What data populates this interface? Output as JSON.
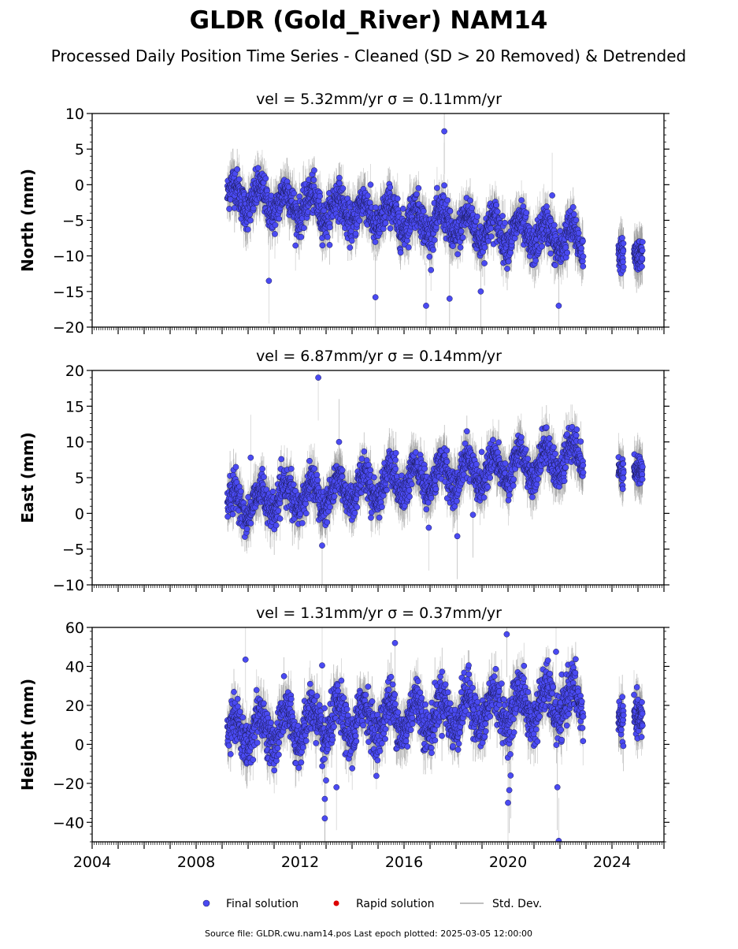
{
  "header": {
    "title": "GLDR (Gold_River) NAM14",
    "subtitle": "Processed Daily Position Time Series - Cleaned (SD > 20 Removed) & Detrended"
  },
  "colors": {
    "final": "#4a4af2",
    "rapid": "#dd0000",
    "stddev": "#c0c0c0"
  },
  "legend": {
    "placement": "bottom-center",
    "final_label": "Final solution",
    "rapid_label": "Rapid solution",
    "stddev_label": "Std. Dev."
  },
  "footer": {
    "text": "Source file: GLDR.cwu.nam14.pos  Last epoch plotted: 2025-03-05 12:00:00"
  },
  "chart_data": [
    {
      "type": "scatter",
      "title": "vel = 5.32mm/yr   σ = 0.11mm/yr",
      "ylabel": "North (mm)",
      "xlim": [
        2004,
        2026
      ],
      "ylim": [
        -20,
        10
      ],
      "yticks": [
        "10",
        "5",
        "0",
        "−5",
        "−10",
        "−15",
        "−20"
      ],
      "xticks": [
        "2004",
        "2008",
        "2012",
        "2016",
        "2020",
        "2024"
      ],
      "grid": false,
      "data_span": [
        2009.2,
        2022.9
      ],
      "extra_spans": [
        [
          2024.25,
          2024.45
        ],
        [
          2024.85,
          2025.18
        ]
      ],
      "trend": {
        "start": -1.5,
        "end": -8.0,
        "amplitude": 1.8,
        "noise": 1.3
      },
      "outliers": [
        {
          "x": 2017.55,
          "y": 7.5
        },
        {
          "x": 2017.55,
          "y": -0.1
        },
        {
          "x": 2010.8,
          "y": -13.5
        },
        {
          "x": 2014.9,
          "y": -15.8
        },
        {
          "x": 2016.85,
          "y": -17.0
        },
        {
          "x": 2017.75,
          "y": -16.0
        },
        {
          "x": 2021.95,
          "y": -17.0
        },
        {
          "x": 2018.95,
          "y": -15.0
        },
        {
          "x": 2021.7,
          "y": -1.5
        }
      ]
    },
    {
      "type": "scatter",
      "title": "vel = 6.87mm/yr   σ = 0.14mm/yr",
      "ylabel": "East (mm)",
      "xlim": [
        2004,
        2026
      ],
      "ylim": [
        -10,
        20
      ],
      "yticks": [
        "20",
        "15",
        "10",
        "5",
        "0",
        "−5",
        "−10"
      ],
      "xticks": [
        "2004",
        "2008",
        "2012",
        "2016",
        "2020",
        "2024"
      ],
      "grid": false,
      "data_span": [
        2009.2,
        2022.9
      ],
      "extra_spans": [
        [
          2024.25,
          2024.45
        ],
        [
          2024.85,
          2025.18
        ]
      ],
      "trend": {
        "start": 1.0,
        "end": 8.0,
        "amplitude": 2.0,
        "noise": 1.2
      },
      "outliers": [
        {
          "x": 2012.7,
          "y": 19.0
        },
        {
          "x": 2016.95,
          "y": -2.0
        },
        {
          "x": 2018.05,
          "y": -3.2
        },
        {
          "x": 2018.65,
          "y": -0.2
        },
        {
          "x": 2013.5,
          "y": 10.0
        },
        {
          "x": 2012.85,
          "y": -4.5
        },
        {
          "x": 2010.1,
          "y": 7.8
        }
      ]
    },
    {
      "type": "scatter",
      "title": "vel = 1.31mm/yr   σ = 0.37mm/yr",
      "ylabel": "Height (mm)",
      "xlim": [
        2004,
        2026
      ],
      "ylim": [
        -50,
        60
      ],
      "yticks": [
        "60",
        "40",
        "20",
        "0",
        "−20",
        "−40"
      ],
      "xticks": [
        "2004",
        "2008",
        "2012",
        "2016",
        "2020",
        "2024"
      ],
      "grid": false,
      "data_span": [
        2009.2,
        2022.9
      ],
      "extra_spans": [
        [
          2024.25,
          2024.45
        ],
        [
          2024.85,
          2025.18
        ]
      ],
      "trend": {
        "start": 6.0,
        "end": 22.0,
        "amplitude": 9.0,
        "noise": 6.0
      },
      "outliers": [
        {
          "x": 2009.9,
          "y": 43.5
        },
        {
          "x": 2012.85,
          "y": 40.5
        },
        {
          "x": 2012.95,
          "y": -28.0
        },
        {
          "x": 2012.95,
          "y": -38.0
        },
        {
          "x": 2013.0,
          "y": -18.5
        },
        {
          "x": 2015.65,
          "y": 52.0
        },
        {
          "x": 2019.95,
          "y": 56.5
        },
        {
          "x": 2020.05,
          "y": -23.5
        },
        {
          "x": 2020.0,
          "y": -30.0
        },
        {
          "x": 2020.1,
          "y": -16.0
        },
        {
          "x": 2021.9,
          "y": -22.0
        },
        {
          "x": 2021.95,
          "y": -49.5
        },
        {
          "x": 2021.85,
          "y": 47.5
        },
        {
          "x": 2013.4,
          "y": -22.0
        }
      ]
    }
  ]
}
